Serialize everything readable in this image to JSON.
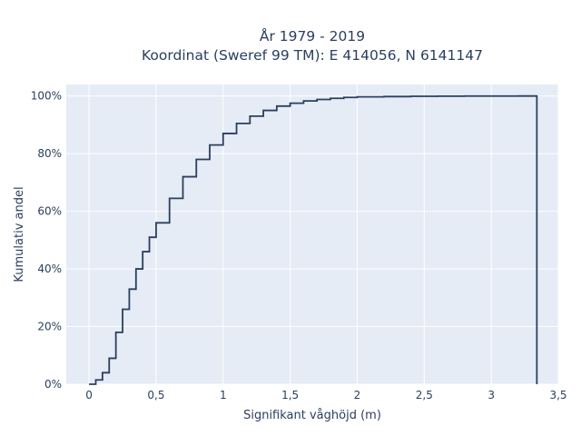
{
  "chart_data": {
    "type": "line",
    "line_shape": "step",
    "title_lines": [
      "År 1979 - 2019",
      "Koordinat (Sweref 99 TM): E 414056, N 6141147"
    ],
    "xlabel": "Signifikant våghöjd (m)",
    "ylabel": "Kumulativ andel",
    "xlim": [
      -0.17,
      3.5
    ],
    "ylim": [
      0,
      1.04
    ],
    "x_ticks": [
      0,
      0.5,
      1,
      1.5,
      2,
      2.5,
      3,
      3.5
    ],
    "x_tick_labels": [
      "0",
      "0,5",
      "1",
      "1,5",
      "2",
      "2,5",
      "3",
      "3,5"
    ],
    "y_ticks": [
      0,
      0.2,
      0.4,
      0.6,
      0.8,
      1.0
    ],
    "y_tick_labels": [
      "0%",
      "20%",
      "40%",
      "60%",
      "80%",
      "100%"
    ],
    "grid": true,
    "legend": "none",
    "series": [
      {
        "x": [
          0,
          0.05,
          0.1,
          0.15,
          0.2,
          0.25,
          0.3,
          0.35,
          0.4,
          0.45,
          0.5,
          0.6,
          0.7,
          0.8,
          0.9,
          1.0,
          1.1,
          1.2,
          1.3,
          1.4,
          1.5,
          1.6,
          1.7,
          1.8,
          1.9,
          2.0,
          2.2,
          2.4,
          2.6,
          2.8,
          3.0,
          3.2,
          3.34,
          3.34
        ],
        "y": [
          0,
          0.015,
          0.04,
          0.09,
          0.18,
          0.26,
          0.33,
          0.4,
          0.46,
          0.51,
          0.56,
          0.645,
          0.72,
          0.78,
          0.83,
          0.87,
          0.905,
          0.93,
          0.95,
          0.965,
          0.975,
          0.983,
          0.988,
          0.992,
          0.995,
          0.997,
          0.998,
          0.999,
          0.9995,
          0.9998,
          0.9999,
          1.0,
          1.0,
          0
        ]
      }
    ],
    "colors": {
      "line": "#2a3f5f",
      "plot_bg": "#e5ecf6",
      "grid": "#ffffff",
      "text": "#2a3f5f"
    }
  }
}
